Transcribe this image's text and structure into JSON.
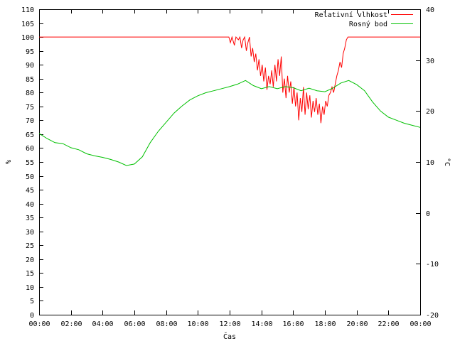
{
  "chart_data": {
    "type": "line",
    "title": "",
    "xlabel": "Čas",
    "ylabel_left": "%",
    "ylabel_right": "°C",
    "xlim": [
      0,
      24
    ],
    "ylim_left": [
      0,
      110
    ],
    "ylim_right": [
      -20,
      40
    ],
    "grid": false,
    "legend_position": "top-right",
    "x_tick_labels": [
      "00:00",
      "02:00",
      "04:00",
      "06:00",
      "08:00",
      "10:00",
      "12:00",
      "14:00",
      "16:00",
      "18:00",
      "20:00",
      "22:00",
      "00:00"
    ],
    "y_left_ticks": [
      0,
      5,
      10,
      15,
      20,
      25,
      30,
      35,
      40,
      45,
      50,
      55,
      60,
      65,
      70,
      75,
      80,
      85,
      90,
      95,
      100,
      105,
      110
    ],
    "y_right_ticks": [
      -20,
      -10,
      0,
      10,
      20,
      30,
      40
    ],
    "series": [
      {
        "name": "Relativní vlhkost",
        "axis": "left",
        "color": "#ff0000",
        "points": [
          [
            0,
            100
          ],
          [
            11.95,
            100
          ],
          [
            12.05,
            98
          ],
          [
            12.15,
            100
          ],
          [
            12.3,
            97
          ],
          [
            12.4,
            100
          ],
          [
            12.55,
            99
          ],
          [
            12.65,
            100
          ],
          [
            12.75,
            96
          ],
          [
            12.85,
            99
          ],
          [
            12.95,
            100
          ],
          [
            13.05,
            95
          ],
          [
            13.15,
            98
          ],
          [
            13.25,
            100
          ],
          [
            13.35,
            93
          ],
          [
            13.45,
            96
          ],
          [
            13.55,
            91
          ],
          [
            13.65,
            94
          ],
          [
            13.75,
            88
          ],
          [
            13.85,
            92
          ],
          [
            13.95,
            86
          ],
          [
            14.05,
            90
          ],
          [
            14.15,
            84
          ],
          [
            14.25,
            89
          ],
          [
            14.35,
            81
          ],
          [
            14.45,
            86
          ],
          [
            14.55,
            83
          ],
          [
            14.65,
            88
          ],
          [
            14.75,
            82
          ],
          [
            14.85,
            90
          ],
          [
            14.95,
            84
          ],
          [
            15.05,
            92
          ],
          [
            15.15,
            86
          ],
          [
            15.25,
            93
          ],
          [
            15.35,
            80
          ],
          [
            15.45,
            85
          ],
          [
            15.55,
            78
          ],
          [
            15.65,
            86
          ],
          [
            15.75,
            80
          ],
          [
            15.85,
            84
          ],
          [
            15.95,
            76
          ],
          [
            16.05,
            82
          ],
          [
            16.15,
            75
          ],
          [
            16.25,
            80
          ],
          [
            16.35,
            70
          ],
          [
            16.45,
            78
          ],
          [
            16.55,
            73
          ],
          [
            16.65,
            82
          ],
          [
            16.75,
            72
          ],
          [
            16.85,
            80
          ],
          [
            16.95,
            74
          ],
          [
            17.05,
            79
          ],
          [
            17.15,
            71
          ],
          [
            17.25,
            77
          ],
          [
            17.35,
            73
          ],
          [
            17.45,
            78
          ],
          [
            17.55,
            72
          ],
          [
            17.65,
            76
          ],
          [
            17.75,
            69
          ],
          [
            17.85,
            75
          ],
          [
            17.95,
            72
          ],
          [
            18.05,
            77
          ],
          [
            18.15,
            75
          ],
          [
            18.25,
            79
          ],
          [
            18.35,
            80
          ],
          [
            18.45,
            82
          ],
          [
            18.55,
            80
          ],
          [
            18.65,
            83
          ],
          [
            18.75,
            86
          ],
          [
            18.85,
            88
          ],
          [
            18.95,
            91
          ],
          [
            19.05,
            89
          ],
          [
            19.15,
            94
          ],
          [
            19.25,
            96
          ],
          [
            19.35,
            99
          ],
          [
            19.45,
            100
          ],
          [
            24,
            100
          ]
        ]
      },
      {
        "name": "Rosný bod",
        "axis": "right",
        "color": "#00c000",
        "points": [
          [
            0,
            15.6
          ],
          [
            0.5,
            14.6
          ],
          [
            1,
            13.8
          ],
          [
            1.5,
            13.6
          ],
          [
            2,
            12.8
          ],
          [
            2.5,
            12.4
          ],
          [
            3,
            11.6
          ],
          [
            3.5,
            11.2
          ],
          [
            4,
            10.9
          ],
          [
            4.5,
            10.5
          ],
          [
            5,
            10.0
          ],
          [
            5.5,
            9.3
          ],
          [
            6,
            9.6
          ],
          [
            6.5,
            11.0
          ],
          [
            7,
            13.8
          ],
          [
            7.5,
            16.0
          ],
          [
            8,
            17.8
          ],
          [
            8.5,
            19.6
          ],
          [
            9,
            21.0
          ],
          [
            9.5,
            22.2
          ],
          [
            10,
            23.0
          ],
          [
            10.5,
            23.6
          ],
          [
            11,
            24.0
          ],
          [
            11.5,
            24.4
          ],
          [
            12,
            24.8
          ],
          [
            12.5,
            25.3
          ],
          [
            13,
            26.0
          ],
          [
            13.5,
            25.0
          ],
          [
            14,
            24.4
          ],
          [
            14.5,
            24.8
          ],
          [
            15,
            24.4
          ],
          [
            15.5,
            24.8
          ],
          [
            16,
            24.6
          ],
          [
            16.5,
            24.0
          ],
          [
            17,
            24.5
          ],
          [
            17.5,
            24.0
          ],
          [
            18,
            23.8
          ],
          [
            18.5,
            24.5
          ],
          [
            19,
            25.5
          ],
          [
            19.5,
            26.0
          ],
          [
            20,
            25.2
          ],
          [
            20.5,
            24.0
          ],
          [
            21,
            21.8
          ],
          [
            21.5,
            20.0
          ],
          [
            22,
            18.8
          ],
          [
            22.5,
            18.2
          ],
          [
            23,
            17.6
          ],
          [
            23.5,
            17.2
          ],
          [
            24,
            16.8
          ]
        ]
      }
    ]
  }
}
